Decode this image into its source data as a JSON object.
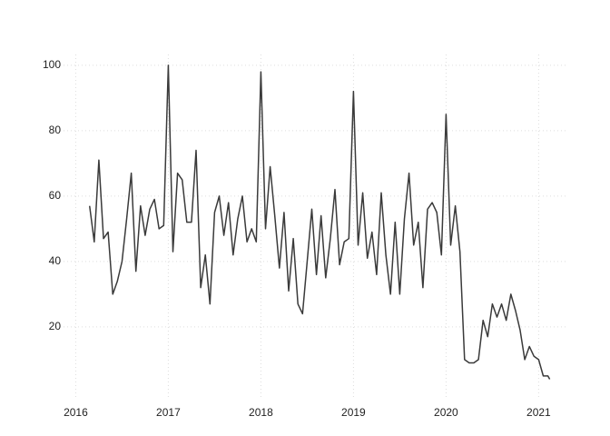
{
  "chart_data": {
    "type": "line",
    "x": [
      2016.15,
      2016.2,
      2016.25,
      2016.3,
      2016.35,
      2016.4,
      2016.45,
      2016.5,
      2016.55,
      2016.6,
      2016.65,
      2016.7,
      2016.75,
      2016.8,
      2016.85,
      2016.9,
      2016.95,
      2017.0,
      2017.05,
      2017.1,
      2017.15,
      2017.2,
      2017.25,
      2017.3,
      2017.35,
      2017.4,
      2017.45,
      2017.5,
      2017.55,
      2017.6,
      2017.65,
      2017.7,
      2017.75,
      2017.8,
      2017.85,
      2017.9,
      2017.95,
      2018.0,
      2018.05,
      2018.1,
      2018.15,
      2018.2,
      2018.25,
      2018.3,
      2018.35,
      2018.4,
      2018.45,
      2018.5,
      2018.55,
      2018.6,
      2018.65,
      2018.7,
      2018.75,
      2018.8,
      2018.85,
      2018.9,
      2018.95,
      2019.0,
      2019.05,
      2019.1,
      2019.15,
      2019.2,
      2019.25,
      2019.3,
      2019.35,
      2019.4,
      2019.45,
      2019.5,
      2019.55,
      2019.6,
      2019.65,
      2019.7,
      2019.75,
      2019.8,
      2019.85,
      2019.9,
      2019.95,
      2020.0,
      2020.05,
      2020.1,
      2020.15,
      2020.2,
      2020.25,
      2020.3,
      2020.35,
      2020.4,
      2020.45,
      2020.5,
      2020.55,
      2020.6,
      2020.65,
      2020.7,
      2020.75,
      2020.8,
      2020.85,
      2020.9,
      2020.95,
      2021.0,
      2021.05,
      2021.1,
      2021.12
    ],
    "series": [
      {
        "color": "#3a3a3a",
        "values": [
          57,
          46,
          71,
          47,
          49,
          30,
          34,
          40,
          53,
          67,
          37,
          57,
          48,
          56,
          59,
          50,
          51,
          100,
          43,
          67,
          65,
          52,
          52,
          74,
          32,
          42,
          27,
          55,
          60,
          48,
          58,
          42,
          53,
          60,
          46,
          50,
          46,
          98,
          50,
          69,
          54,
          38,
          55,
          31,
          47,
          27,
          24,
          40,
          56,
          36,
          54,
          35,
          47,
          62,
          39,
          46,
          47,
          92,
          45,
          61,
          41,
          49,
          36,
          61,
          42,
          30,
          52,
          30,
          53,
          67,
          45,
          52,
          32,
          56,
          58,
          55,
          42,
          85,
          45,
          57,
          43,
          10,
          9,
          9,
          10,
          22,
          17,
          27,
          23,
          27,
          22,
          30,
          25,
          19,
          10,
          14,
          11,
          10,
          5,
          5,
          4
        ]
      }
    ],
    "xlim": [
      2015.79,
      2021.31
    ],
    "xticks": [
      2016,
      2017,
      2018,
      2019,
      2020,
      2021
    ],
    "ylim": [
      -1.7,
      103.3
    ],
    "yticks": [
      20,
      40,
      60,
      80,
      100
    ],
    "grid": true
  }
}
